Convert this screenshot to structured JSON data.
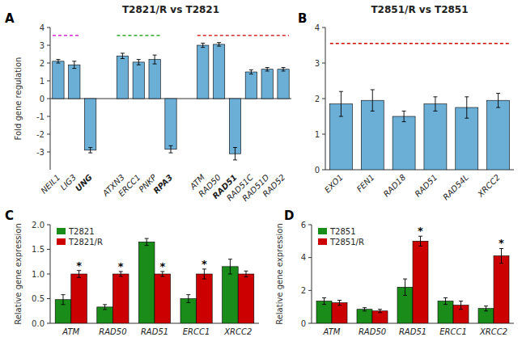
{
  "chart_data": [
    {
      "type": "bar",
      "title": "T2821/R vs T2821",
      "y_label": "Fold gene regulation",
      "categories": [
        "NEIL1",
        "LIG3",
        "UNG",
        null,
        "ATXN3",
        "ERCC1",
        "PNKP",
        "RPA3",
        null,
        "ATM",
        "RAD50",
        "RAD51",
        "RAD51C",
        "RAD51D",
        "RAD52"
      ],
      "values": [
        2.1,
        1.9,
        -2.9,
        null,
        2.4,
        2.05,
        2.2,
        -2.85,
        null,
        3.0,
        3.05,
        -3.1,
        1.5,
        1.65,
        1.65
      ],
      "errors": [
        0.1,
        0.2,
        0.15,
        null,
        0.15,
        0.15,
        0.25,
        0.2,
        null,
        0.12,
        0.1,
        0.35,
        0.12,
        0.1,
        0.1
      ],
      "color": "#6baed6",
      "ylim": [
        -4,
        4
      ],
      "yticks": [
        -3,
        -2,
        -1,
        0,
        1,
        2,
        3,
        4
      ],
      "annotations": [
        {
          "text": "A"
        },
        {
          "range": [
            0,
            1
          ],
          "y": 3.55,
          "color": "#cc00cc",
          "line_style": "dashed"
        },
        {
          "range": [
            4,
            6
          ],
          "y": 3.55,
          "color": "#009900",
          "line_style": "dashed"
        },
        {
          "range": [
            9,
            14
          ],
          "y": 3.55,
          "color": "#cc0000",
          "line_style": "dashed"
        }
      ]
    },
    {
      "type": "bar",
      "title": "T2851/R vs T2851",
      "categories": [
        "EXO1",
        "FEN1",
        "RAD18",
        "RAD51",
        "RAD54L",
        "XRCC2"
      ],
      "values": [
        1.85,
        1.95,
        1.5,
        1.85,
        1.75,
        1.95
      ],
      "errors": [
        0.35,
        0.3,
        0.15,
        0.2,
        0.3,
        0.2
      ],
      "color": "#6baed6",
      "ylim": [
        0,
        4
      ],
      "yticks": [
        0,
        1,
        2,
        3,
        4
      ],
      "annotations": [
        {
          "text": "B"
        },
        {
          "range": [
            0,
            5
          ],
          "y": 3.55,
          "color": "#cc0000",
          "line_style": "dashed"
        }
      ]
    },
    {
      "type": "bar",
      "y_label": "Relative gene expression",
      "categories": [
        "ATM",
        "RAD50",
        "RAD51",
        "ERCC1",
        "XRCC2"
      ],
      "series": [
        {
          "name": "T2821",
          "color": "#1a8c1a",
          "values": [
            0.48,
            0.33,
            1.65,
            0.5,
            1.15
          ],
          "errors": [
            0.1,
            0.05,
            0.07,
            0.08,
            0.15
          ]
        },
        {
          "name": "T2821/R",
          "color": "#cc0000",
          "values": [
            1.0,
            1.0,
            1.0,
            1.0,
            1.0
          ],
          "errors": [
            0.07,
            0.05,
            0.05,
            0.1,
            0.06
          ]
        }
      ],
      "ylim": [
        0,
        2.0
      ],
      "yticks": [
        {
          "value": 0,
          "label": "0.0"
        },
        0.5,
        {
          "value": 1,
          "label": "1.0"
        },
        1.5,
        {
          "value": 2,
          "label": "2.0"
        }
      ],
      "legend": "upper left",
      "annotations": [
        {
          "text": "C"
        },
        {
          "text": "*",
          "series": 1,
          "index": 0
        },
        {
          "text": "*",
          "series": 1,
          "index": 1
        },
        {
          "text": "*",
          "series": 1,
          "index": 2
        },
        {
          "text": "*",
          "series": 1,
          "index": 3
        }
      ]
    },
    {
      "type": "bar",
      "y_label": "Relative gene expression",
      "categories": [
        "ATM",
        "RAD50",
        "RAD51",
        "ERCC1",
        "XRCC2"
      ],
      "series": [
        {
          "name": "T2851",
          "color": "#1a8c1a",
          "values": [
            1.35,
            0.85,
            2.2,
            1.35,
            0.9
          ],
          "errors": [
            0.2,
            0.1,
            0.5,
            0.2,
            0.15
          ]
        },
        {
          "name": "T2851/R",
          "color": "#cc0000",
          "values": [
            1.25,
            0.75,
            5.0,
            1.1,
            4.1
          ],
          "errors": [
            0.15,
            0.1,
            0.3,
            0.25,
            0.45
          ]
        }
      ],
      "ylim": [
        0,
        6
      ],
      "yticks": [
        0,
        2,
        4,
        6
      ],
      "legend": "upper left",
      "annotations": [
        {
          "text": "D"
        },
        {
          "text": "*",
          "series": 1,
          "index": 2
        },
        {
          "text": "*",
          "series": 1,
          "index": 4
        }
      ]
    }
  ]
}
